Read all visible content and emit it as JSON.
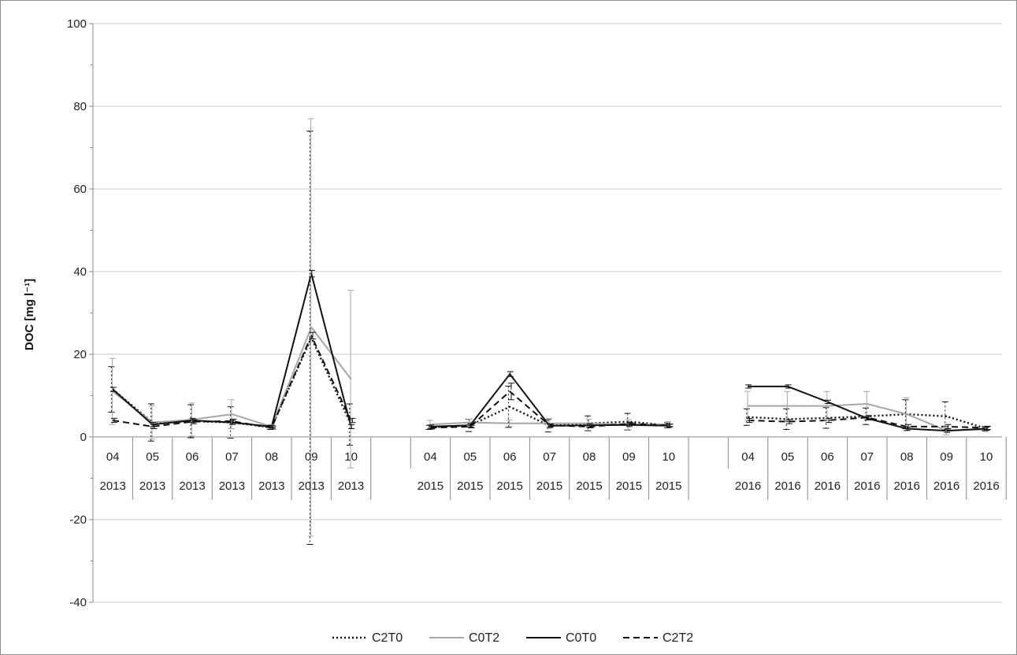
{
  "chart_data": {
    "type": "line",
    "ylabel": "DOC [mg l⁻¹]",
    "ylim": [
      -40,
      100
    ],
    "yticks": [
      -40,
      -20,
      0,
      20,
      40,
      60,
      80,
      100
    ],
    "grid": "horizontal",
    "legend_position": "bottom",
    "categories": [
      {
        "month": "04",
        "year": "2013"
      },
      {
        "month": "05",
        "year": "2013"
      },
      {
        "month": "06",
        "year": "2013"
      },
      {
        "month": "07",
        "year": "2013"
      },
      {
        "month": "08",
        "year": "2013"
      },
      {
        "month": "09",
        "year": "2013"
      },
      {
        "month": "10",
        "year": "2013"
      },
      {
        "month": "",
        "year": ""
      },
      {
        "month": "04",
        "year": "2015"
      },
      {
        "month": "05",
        "year": "2015"
      },
      {
        "month": "06",
        "year": "2015"
      },
      {
        "month": "07",
        "year": "2015"
      },
      {
        "month": "08",
        "year": "2015"
      },
      {
        "month": "09",
        "year": "2015"
      },
      {
        "month": "10",
        "year": "2015"
      },
      {
        "month": "",
        "year": ""
      },
      {
        "month": "04",
        "year": "2016"
      },
      {
        "month": "05",
        "year": "2016"
      },
      {
        "month": "06",
        "year": "2016"
      },
      {
        "month": "07",
        "year": "2016"
      },
      {
        "month": "08",
        "year": "2016"
      },
      {
        "month": "09",
        "year": "2016"
      },
      {
        "month": "10",
        "year": "2016"
      }
    ],
    "series": [
      {
        "name": "C2T0",
        "style": "dotted",
        "color": "#111111",
        "values": [
          11.5,
          3.5,
          3.8,
          3.5,
          2.3,
          24.0,
          3.0,
          null,
          2.3,
          2.8,
          7.3,
          2.7,
          3.3,
          3.7,
          2.8,
          null,
          4.8,
          4.3,
          4.6,
          5.0,
          5.5,
          5.0,
          2.0
        ],
        "errors": [
          5.5,
          4.5,
          4.0,
          3.8,
          0.5,
          50.0,
          5.0,
          null,
          0.5,
          1.5,
          5.0,
          1.5,
          1.8,
          2.0,
          0.6,
          null,
          2.0,
          2.5,
          2.5,
          2.0,
          3.5,
          3.5,
          0.5
        ]
      },
      {
        "name": "C0T2",
        "style": "solid",
        "color": "#a6a6a6",
        "values": [
          11.0,
          3.5,
          4.2,
          5.5,
          2.5,
          26.5,
          14.0,
          null,
          3.0,
          3.5,
          3.3,
          3.3,
          3.3,
          3.0,
          3.0,
          null,
          7.5,
          7.5,
          7.5,
          8.0,
          5.5,
          1.5,
          1.8
        ],
        "errors": [
          8.0,
          4.0,
          4.0,
          3.5,
          0.5,
          50.5,
          21.5,
          null,
          1.0,
          0.8,
          0.8,
          1.2,
          1.0,
          1.2,
          0.7,
          null,
          3.5,
          3.5,
          3.5,
          3.0,
          4.0,
          1.0,
          0.5
        ]
      },
      {
        "name": "C0T0",
        "style": "solid",
        "color": "#111111",
        "values": [
          11.5,
          3.0,
          4.0,
          3.5,
          2.5,
          39.5,
          2.5,
          null,
          2.5,
          2.8,
          15.2,
          2.7,
          2.8,
          2.9,
          2.7,
          null,
          12.2,
          12.2,
          8.5,
          4.5,
          2.0,
          1.5,
          2.0
        ],
        "errors": [
          0.5,
          0.5,
          0.5,
          0.5,
          0.3,
          0.8,
          0.5,
          null,
          0.4,
          0.4,
          0.6,
          0.4,
          0.4,
          0.4,
          0.4,
          null,
          0.4,
          0.4,
          0.4,
          0.4,
          0.4,
          0.4,
          0.4
        ]
      },
      {
        "name": "C2T2",
        "style": "dashed",
        "color": "#111111",
        "values": [
          4.0,
          2.5,
          3.7,
          3.8,
          2.2,
          24.5,
          4.0,
          null,
          2.2,
          2.5,
          11.0,
          2.8,
          2.5,
          3.2,
          2.8,
          null,
          4.0,
          3.7,
          4.0,
          4.7,
          2.5,
          2.5,
          2.2
        ],
        "errors": [
          0.5,
          0.5,
          0.5,
          0.5,
          0.3,
          0.8,
          0.5,
          null,
          0.3,
          0.3,
          2.0,
          0.3,
          0.3,
          0.3,
          0.3,
          null,
          0.5,
          0.5,
          0.5,
          0.5,
          0.5,
          0.5,
          0.4
        ]
      }
    ],
    "legend": [
      {
        "label": "C2T0",
        "style": "dotted",
        "color": "#111111"
      },
      {
        "label": "C0T2",
        "style": "solid",
        "color": "#a6a6a6"
      },
      {
        "label": "C0T0",
        "style": "solid",
        "color": "#111111"
      },
      {
        "label": "C2T2",
        "style": "dashed",
        "color": "#111111"
      }
    ]
  }
}
